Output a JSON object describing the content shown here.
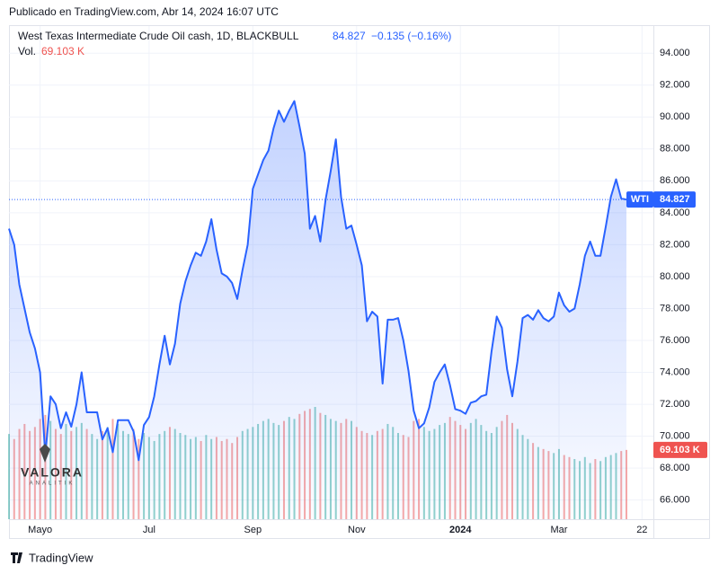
{
  "header": {
    "published": "Publicado en TradingView.com, Abr 14, 2024 16:07 UTC"
  },
  "chart_data": {
    "type": "line",
    "title": "West Texas Intermediate Crude Oil cash, 1D, BLACKBULL",
    "change_label": "−0.135 (−0.16%)",
    "price_tag": "WTI",
    "categories": [
      null,
      null,
      null,
      null,
      null,
      null,
      "Mayo",
      null,
      null,
      null,
      null,
      null,
      null,
      null,
      null,
      null,
      null,
      null,
      null,
      null,
      null,
      null,
      null,
      null,
      null,
      null,
      null,
      "Jul",
      null,
      null,
      null,
      null,
      null,
      null,
      null,
      null,
      null,
      null,
      null,
      null,
      null,
      null,
      null,
      null,
      null,
      null,
      null,
      "Sep",
      null,
      null,
      null,
      null,
      null,
      null,
      null,
      null,
      null,
      null,
      null,
      null,
      null,
      null,
      null,
      null,
      null,
      null,
      null,
      "Nov",
      null,
      null,
      null,
      null,
      null,
      null,
      null,
      null,
      null,
      null,
      null,
      null,
      null,
      null,
      null,
      null,
      null,
      null,
      null,
      "2024",
      null,
      null,
      null,
      null,
      null,
      null,
      null,
      null,
      null,
      null,
      null,
      null,
      null,
      null,
      null,
      null,
      null,
      null,
      "Mar",
      null,
      null,
      null,
      null,
      null,
      null,
      null,
      null,
      null,
      null,
      null,
      null,
      null,
      null,
      null,
      "22",
      null
    ],
    "series": [
      {
        "name": "WTI",
        "color": "#2962ff",
        "values": [
          83,
          82,
          79.5,
          78,
          76.5,
          75.5,
          74,
          68.8,
          72.5,
          72,
          70.5,
          71.5,
          70.6,
          72,
          74,
          71.5,
          71.5,
          71.5,
          69.8,
          70.5,
          69,
          71,
          71,
          71,
          70.3,
          68.5,
          70.7,
          71.2,
          72.5,
          74.5,
          76.3,
          74.5,
          75.8,
          78.3,
          79.7,
          80.7,
          81.5,
          81.3,
          82.2,
          83.6,
          81.7,
          80.2,
          80,
          79.6,
          78.6,
          80.4,
          82,
          85.5,
          86.4,
          87.3,
          87.9,
          89.3,
          90.4,
          89.7,
          90.4,
          91,
          89.4,
          87.7,
          83,
          83.8,
          82.2,
          84.8,
          86.6,
          88.6,
          85,
          83,
          83.2,
          82,
          80.7,
          77.2,
          77.8,
          77.5,
          73.3,
          77.3,
          77.3,
          77.4,
          76,
          74.1,
          71.6,
          70.5,
          70.8,
          71.8,
          73.4,
          74,
          74.5,
          73.2,
          71.7,
          71.6,
          71.4,
          72.1,
          72.2,
          72.5,
          72.6,
          75.3,
          77.5,
          76.8,
          74.2,
          72.5,
          74.7,
          77.4,
          77.6,
          77.3,
          77.9,
          77.4,
          77.2,
          77.5,
          79,
          78.2,
          77.8,
          78,
          79.5,
          81.3,
          82.2,
          81.3,
          81.3,
          83.1,
          85,
          86.1,
          84.9,
          84.827,
          null,
          null,
          null,
          null
        ]
      }
    ],
    "volume": {
      "name": "Vol.",
      "up_color": "#26a69a",
      "down_color": "#ef5350",
      "last_label": "69.103 K",
      "values": [
        85,
        80,
        90,
        95,
        88,
        92,
        100,
        104,
        98,
        90,
        85,
        95,
        88,
        92,
        96,
        90,
        85,
        80,
        88,
        92,
        100,
        95,
        88,
        85,
        90,
        80,
        86,
        82,
        78,
        85,
        88,
        92,
        90,
        86,
        84,
        80,
        82,
        78,
        84,
        80,
        82,
        78,
        80,
        76,
        82,
        88,
        90,
        92,
        95,
        98,
        100,
        96,
        94,
        98,
        102,
        100,
        105,
        108,
        110,
        112,
        106,
        104,
        100,
        98,
        96,
        100,
        98,
        92,
        88,
        86,
        84,
        88,
        90,
        95,
        92,
        86,
        84,
        82,
        98,
        100,
        92,
        88,
        90,
        94,
        96,
        102,
        98,
        94,
        90,
        96,
        100,
        94,
        88,
        86,
        92,
        98,
        104,
        96,
        90,
        84,
        80,
        76,
        72,
        70,
        68,
        66,
        70,
        64,
        62,
        60,
        58,
        62,
        56,
        60,
        58,
        62,
        64,
        66,
        68,
        69.103,
        null,
        null,
        null,
        null
      ]
    },
    "ylim": [
      64.8,
      95.7
    ],
    "yticks": [
      {
        "value": 66,
        "label": "66.000"
      },
      {
        "value": 68,
        "label": "68.000"
      },
      {
        "value": 70,
        "label": "70.000"
      },
      {
        "value": 72,
        "label": "72.000"
      },
      {
        "value": 74,
        "label": "74.000"
      },
      {
        "value": 76,
        "label": "76.000"
      },
      {
        "value": 78,
        "label": "78.000"
      },
      {
        "value": 80,
        "label": "80.000"
      },
      {
        "value": 82,
        "label": "82.000"
      },
      {
        "value": 84,
        "label": "84.000"
      },
      {
        "value": 86,
        "label": "86.000"
      },
      {
        "value": 88,
        "label": "88.000"
      },
      {
        "value": 90,
        "label": "90.000"
      },
      {
        "value": 92,
        "label": "92.000"
      },
      {
        "value": 94,
        "label": "94.000"
      }
    ],
    "grid": true
  },
  "watermark": {
    "name": "VALORA",
    "sub": "ANALITIK"
  },
  "footer": {
    "brand": "TradingView"
  }
}
